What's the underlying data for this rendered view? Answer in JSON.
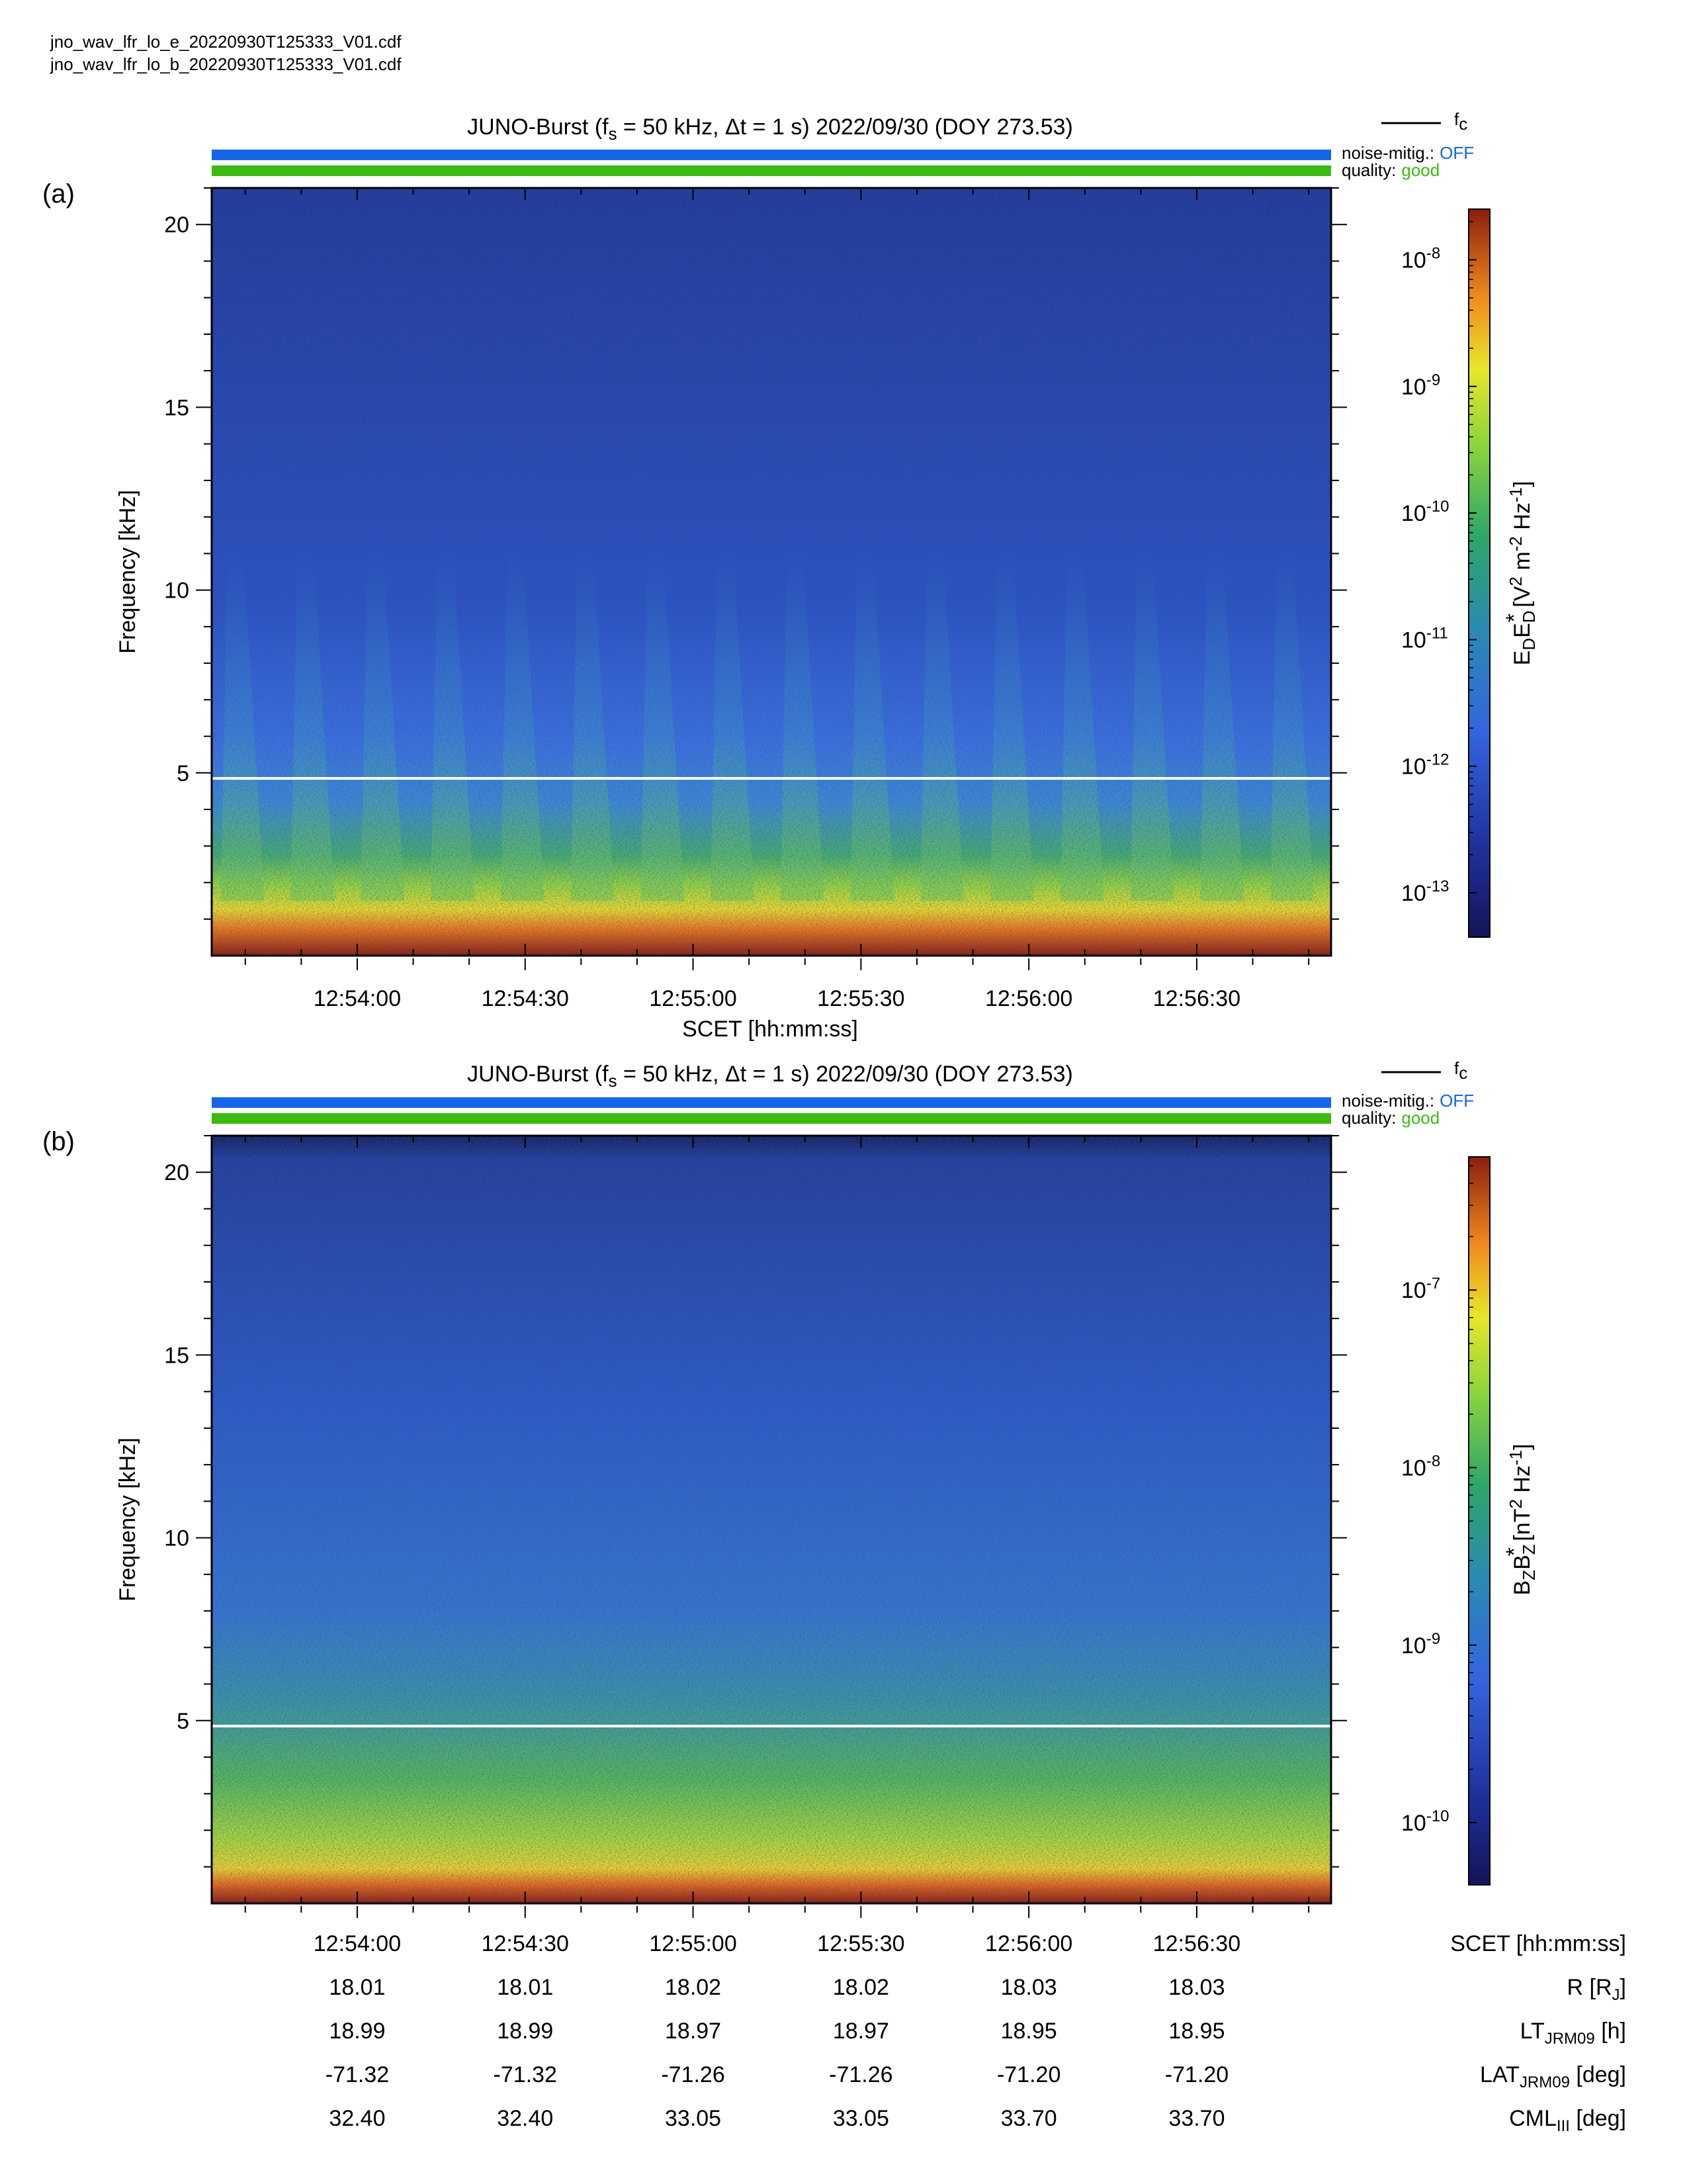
{
  "files": [
    "jno_wav_lfr_lo_e_20220930T125333_V01.cdf",
    "jno_wav_lfr_lo_b_20220930T125333_V01.cdf"
  ],
  "colors": {
    "noise_bar": "#1565e8",
    "quality_bar": "#3cba12",
    "off_text": "#1565e8",
    "good_text": "#3cba12",
    "fc_line": "#ffffff"
  },
  "chart_data": [
    {
      "type": "heatmap",
      "panel_label": "(a)",
      "title": {
        "prefix": "JUNO-Burst (f",
        "fs_sub": "s",
        "fs_rest": " = 50 kHz, Δt = 1 s)  2022/09/30 (DOY 273.53)"
      },
      "legend": {
        "label": "f",
        "label_sub": "c"
      },
      "noise_mitig": {
        "label": "noise-mitig.:",
        "value": "OFF"
      },
      "quality": {
        "label": "quality:",
        "value": "good"
      },
      "ylabel": "Frequency [kHz]",
      "yticks": [
        "5",
        "10",
        "15",
        "20"
      ],
      "ylim": [
        0,
        21
      ],
      "xlabel": "SCET [hh:mm:ss]",
      "xticks": [
        "12:54:00",
        "12:54:30",
        "12:55:00",
        "12:55:30",
        "12:56:00",
        "12:56:30"
      ],
      "xlim": [
        "12:53:34",
        "12:56:54"
      ],
      "fc_khz": 4.85,
      "colorbar": {
        "scale": "log",
        "label_parts": [
          "E",
          "D",
          "E",
          "D",
          "*",
          "  [V",
          "2",
          " m",
          "-2",
          " Hz",
          "-1",
          "]"
        ],
        "tick_exponents": [
          "-8",
          "-9",
          "-10",
          "-11",
          "-12",
          "-13"
        ],
        "range": [
          "1e-13.35",
          "1e-7.6"
        ]
      },
      "features": "Intense emission below ~1 kHz (red/orange), green band 1-3 kHz, quasi-periodic vertical bursts (~12 s period) extending up to ~10 kHz"
    },
    {
      "type": "heatmap",
      "panel_label": "(b)",
      "title": {
        "prefix": "JUNO-Burst (f",
        "fs_sub": "s",
        "fs_rest": " = 50 kHz, Δt = 1 s)  2022/09/30 (DOY 273.53)"
      },
      "legend": {
        "label": "f",
        "label_sub": "c"
      },
      "noise_mitig": {
        "label": "noise-mitig.:",
        "value": "OFF"
      },
      "quality": {
        "label": "quality:",
        "value": "good"
      },
      "ylabel": "Frequency [kHz]",
      "yticks": [
        "5",
        "10",
        "15",
        "20"
      ],
      "ylim": [
        0,
        21
      ],
      "xticks": [
        "12:54:00",
        "12:54:30",
        "12:55:00",
        "12:55:30",
        "12:56:00",
        "12:56:30"
      ],
      "xlim": [
        "12:53:34",
        "12:56:54"
      ],
      "fc_khz": 4.85,
      "colorbar": {
        "scale": "log",
        "label_parts": [
          "B",
          "Z",
          "B",
          "Z",
          "*",
          " [nT",
          "2",
          " Hz",
          "-1",
          "]"
        ],
        "tick_exponents": [
          "-7",
          "-8",
          "-9",
          "-10"
        ],
        "range": [
          "1e-10.35",
          "1e-6.25"
        ]
      },
      "features": "Intense emission below ~1 kHz, broad green band up to ~5 kHz, diffuse blue background"
    }
  ],
  "ephemeris": {
    "rows": [
      {
        "label": "SCET [hh:mm:ss]",
        "label_main": "SCET [hh:mm:ss]",
        "values": [
          "12:54:00",
          "12:54:30",
          "12:55:00",
          "12:55:30",
          "12:56:00",
          "12:56:30"
        ]
      },
      {
        "label": "R [RJ]",
        "label_main": "R [R",
        "label_sub": "J",
        "label_end": "]",
        "values": [
          "18.01",
          "18.01",
          "18.02",
          "18.02",
          "18.03",
          "18.03"
        ]
      },
      {
        "label": "LT JRM09 [h]",
        "label_main": "LT",
        "label_sub": "JRM09",
        "label_end": " [h]",
        "values": [
          "18.99",
          "18.99",
          "18.97",
          "18.97",
          "18.95",
          "18.95"
        ]
      },
      {
        "label": "LAT JRM09 [deg]",
        "label_main": "LAT",
        "label_sub": "JRM09",
        "label_end": " [deg]",
        "values": [
          "-71.32",
          "-71.32",
          "-71.26",
          "-71.26",
          "-71.20",
          "-71.20"
        ]
      },
      {
        "label": "CML III [deg]",
        "label_main": "CML",
        "label_sub": "III",
        "label_end": " [deg]",
        "values": [
          "32.40",
          "32.40",
          "33.05",
          "33.05",
          "33.70",
          "33.70"
        ]
      }
    ]
  }
}
